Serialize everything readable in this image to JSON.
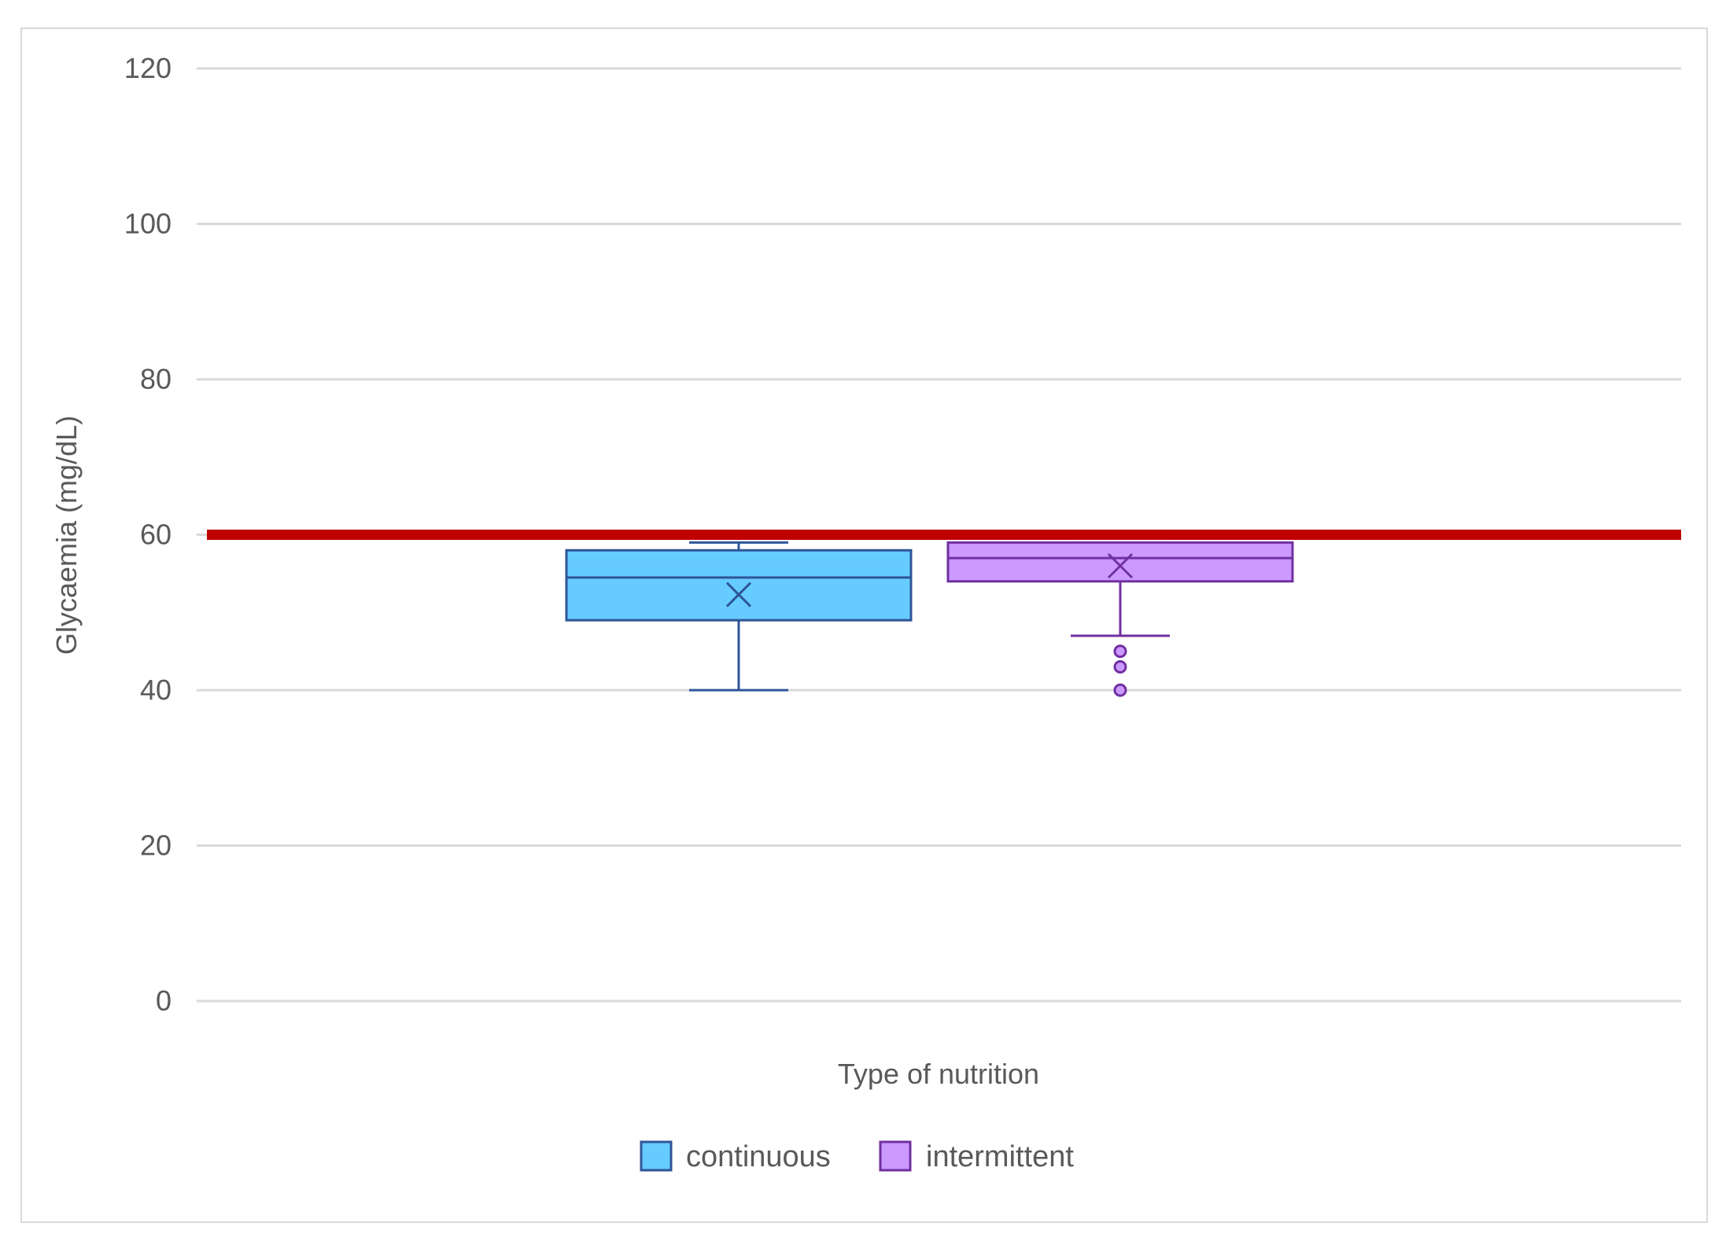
{
  "chart_data": {
    "type": "box",
    "xlabel": "Type of nutrition",
    "ylabel": "Glycaemia (mg/dL)",
    "ylim": [
      0,
      120
    ],
    "yticks": [
      0,
      20,
      40,
      60,
      80,
      100,
      120
    ],
    "grid": true,
    "legend_position": "bottom",
    "reference_line": {
      "y": 60,
      "color": "#c00000"
    },
    "series": [
      {
        "name": "continuous",
        "color": "#66ccff",
        "stroke": "#2f5597",
        "whisker_low": 40,
        "q1": 49,
        "median": 54.5,
        "mean": 52.3,
        "q3": 58,
        "whisker_high": 59,
        "outliers": []
      },
      {
        "name": "intermittent",
        "color": "#cc99ff",
        "stroke": "#7030a0",
        "whisker_low": 47,
        "q1": 54,
        "median": 57,
        "mean": 56,
        "q3": 59,
        "whisker_high": 59,
        "outliers": [
          45,
          43,
          40
        ]
      }
    ]
  }
}
